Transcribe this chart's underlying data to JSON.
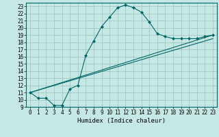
{
  "title": "",
  "xlabel": "Humidex (Indice chaleur)",
  "ylabel": "",
  "bg_color": "#c5e8e5",
  "line_color": "#006666",
  "grid_color": "#9bbfbb",
  "xlim": [
    -0.5,
    23.5
  ],
  "ylim": [
    9,
    23.5
  ],
  "xticks": [
    0,
    1,
    2,
    3,
    4,
    5,
    6,
    7,
    8,
    9,
    10,
    11,
    12,
    13,
    14,
    15,
    16,
    17,
    18,
    19,
    20,
    21,
    22,
    23
  ],
  "yticks": [
    9,
    10,
    11,
    12,
    13,
    14,
    15,
    16,
    17,
    18,
    19,
    20,
    21,
    22,
    23
  ],
  "curve1_x": [
    0,
    1,
    2,
    3,
    4,
    5,
    6,
    7,
    8,
    9,
    10,
    11,
    12,
    13,
    14,
    15,
    16,
    17,
    18,
    19,
    20,
    21,
    22,
    23
  ],
  "curve1_y": [
    11.0,
    10.2,
    10.2,
    9.2,
    9.2,
    11.5,
    12.0,
    16.2,
    18.2,
    20.2,
    21.5,
    22.8,
    23.2,
    22.8,
    22.2,
    20.8,
    19.2,
    18.8,
    18.5,
    18.5,
    18.5,
    18.5,
    18.8,
    19.0
  ],
  "curve2_x": [
    0,
    23
  ],
  "curve2_y": [
    11.0,
    19.0
  ],
  "curve3_x": [
    0,
    23
  ],
  "curve3_y": [
    11.0,
    18.5
  ],
  "marker": "D",
  "markersize": 2.0,
  "linewidth": 0.8,
  "tick_fontsize": 5.5,
  "xlabel_fontsize": 6.5
}
